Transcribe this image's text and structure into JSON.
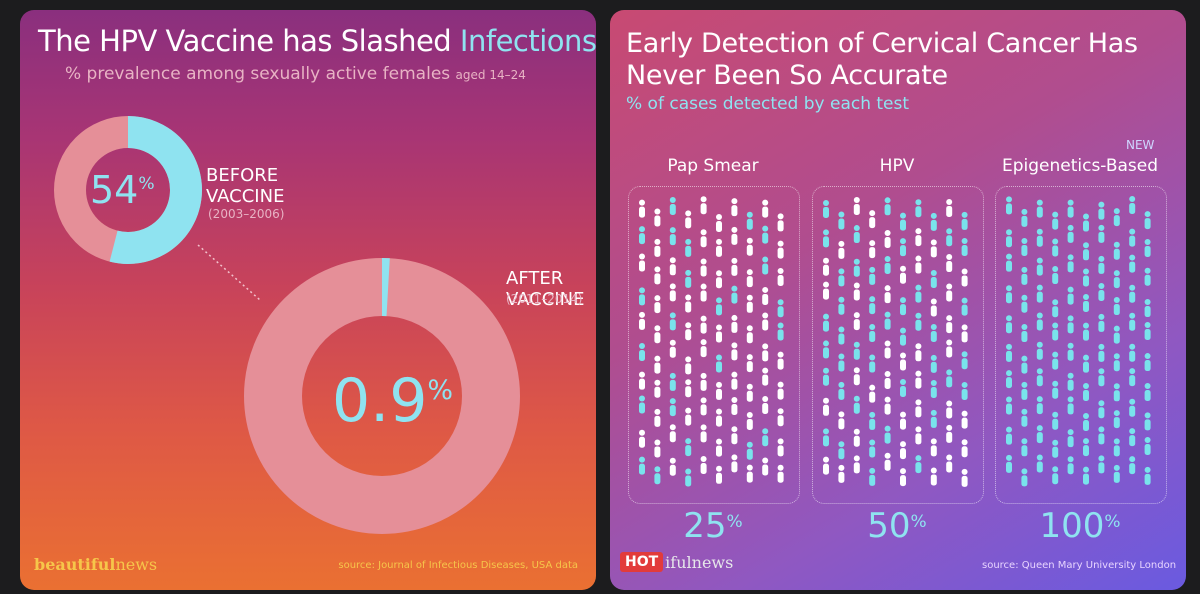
{
  "left": {
    "title_main": "The HPV Vaccine has Slashed ",
    "title_highlight": "Infections",
    "subtitle_main": "% prevalence among sexually active females ",
    "subtitle_small": "aged 14–24",
    "before": {
      "value_text": "54",
      "pct_sign": "%",
      "line1": "BEFORE",
      "line2": "VACCINE",
      "years": "(2003–2006)"
    },
    "after": {
      "value_text": "0.9",
      "pct_sign": "%",
      "line1": "AFTER",
      "line2": "VACCINE",
      "years": "(2011–2014)"
    },
    "brand_bold": "beautiful",
    "brand_rest": "news",
    "source": "source: Journal of Infectious Diseases, USA data"
  },
  "right": {
    "title": "Early Detection of Cervical Cancer Has Never Been So Accurate",
    "subtitle": "% of cases detected by each test",
    "new_tag": "NEW",
    "hot_badge": "HOT",
    "hot_rest": "ifulnews",
    "source": "source: Queen Mary University London"
  },
  "colors": {
    "accent_cyan": "#8fe3f0",
    "donut_track": "#e58f98",
    "brand_yellow": "#f6c64a",
    "person_white": "#ffffff",
    "person_cyan": "#79e3ec"
  },
  "chart_data": [
    {
      "type": "pie",
      "title": "The HPV Vaccine has Slashed Infections",
      "subtitle": "% prevalence among sexually active females aged 14–24",
      "categories": [
        "BEFORE VACCINE (2003–2006)",
        "AFTER VACCINE (2011–2014)"
      ],
      "values": [
        54,
        0.9
      ],
      "unit": "%"
    },
    {
      "type": "bar",
      "title": "Early Detection of Cervical Cancer Has Never Been So Accurate",
      "subtitle": "% of cases detected by each test",
      "categories": [
        "Pap Smear",
        "HPV",
        "Epigenetics-Based"
      ],
      "values": [
        25,
        50,
        100
      ],
      "value_labels": [
        "25",
        "50",
        "100"
      ],
      "unit": "%"
    }
  ]
}
